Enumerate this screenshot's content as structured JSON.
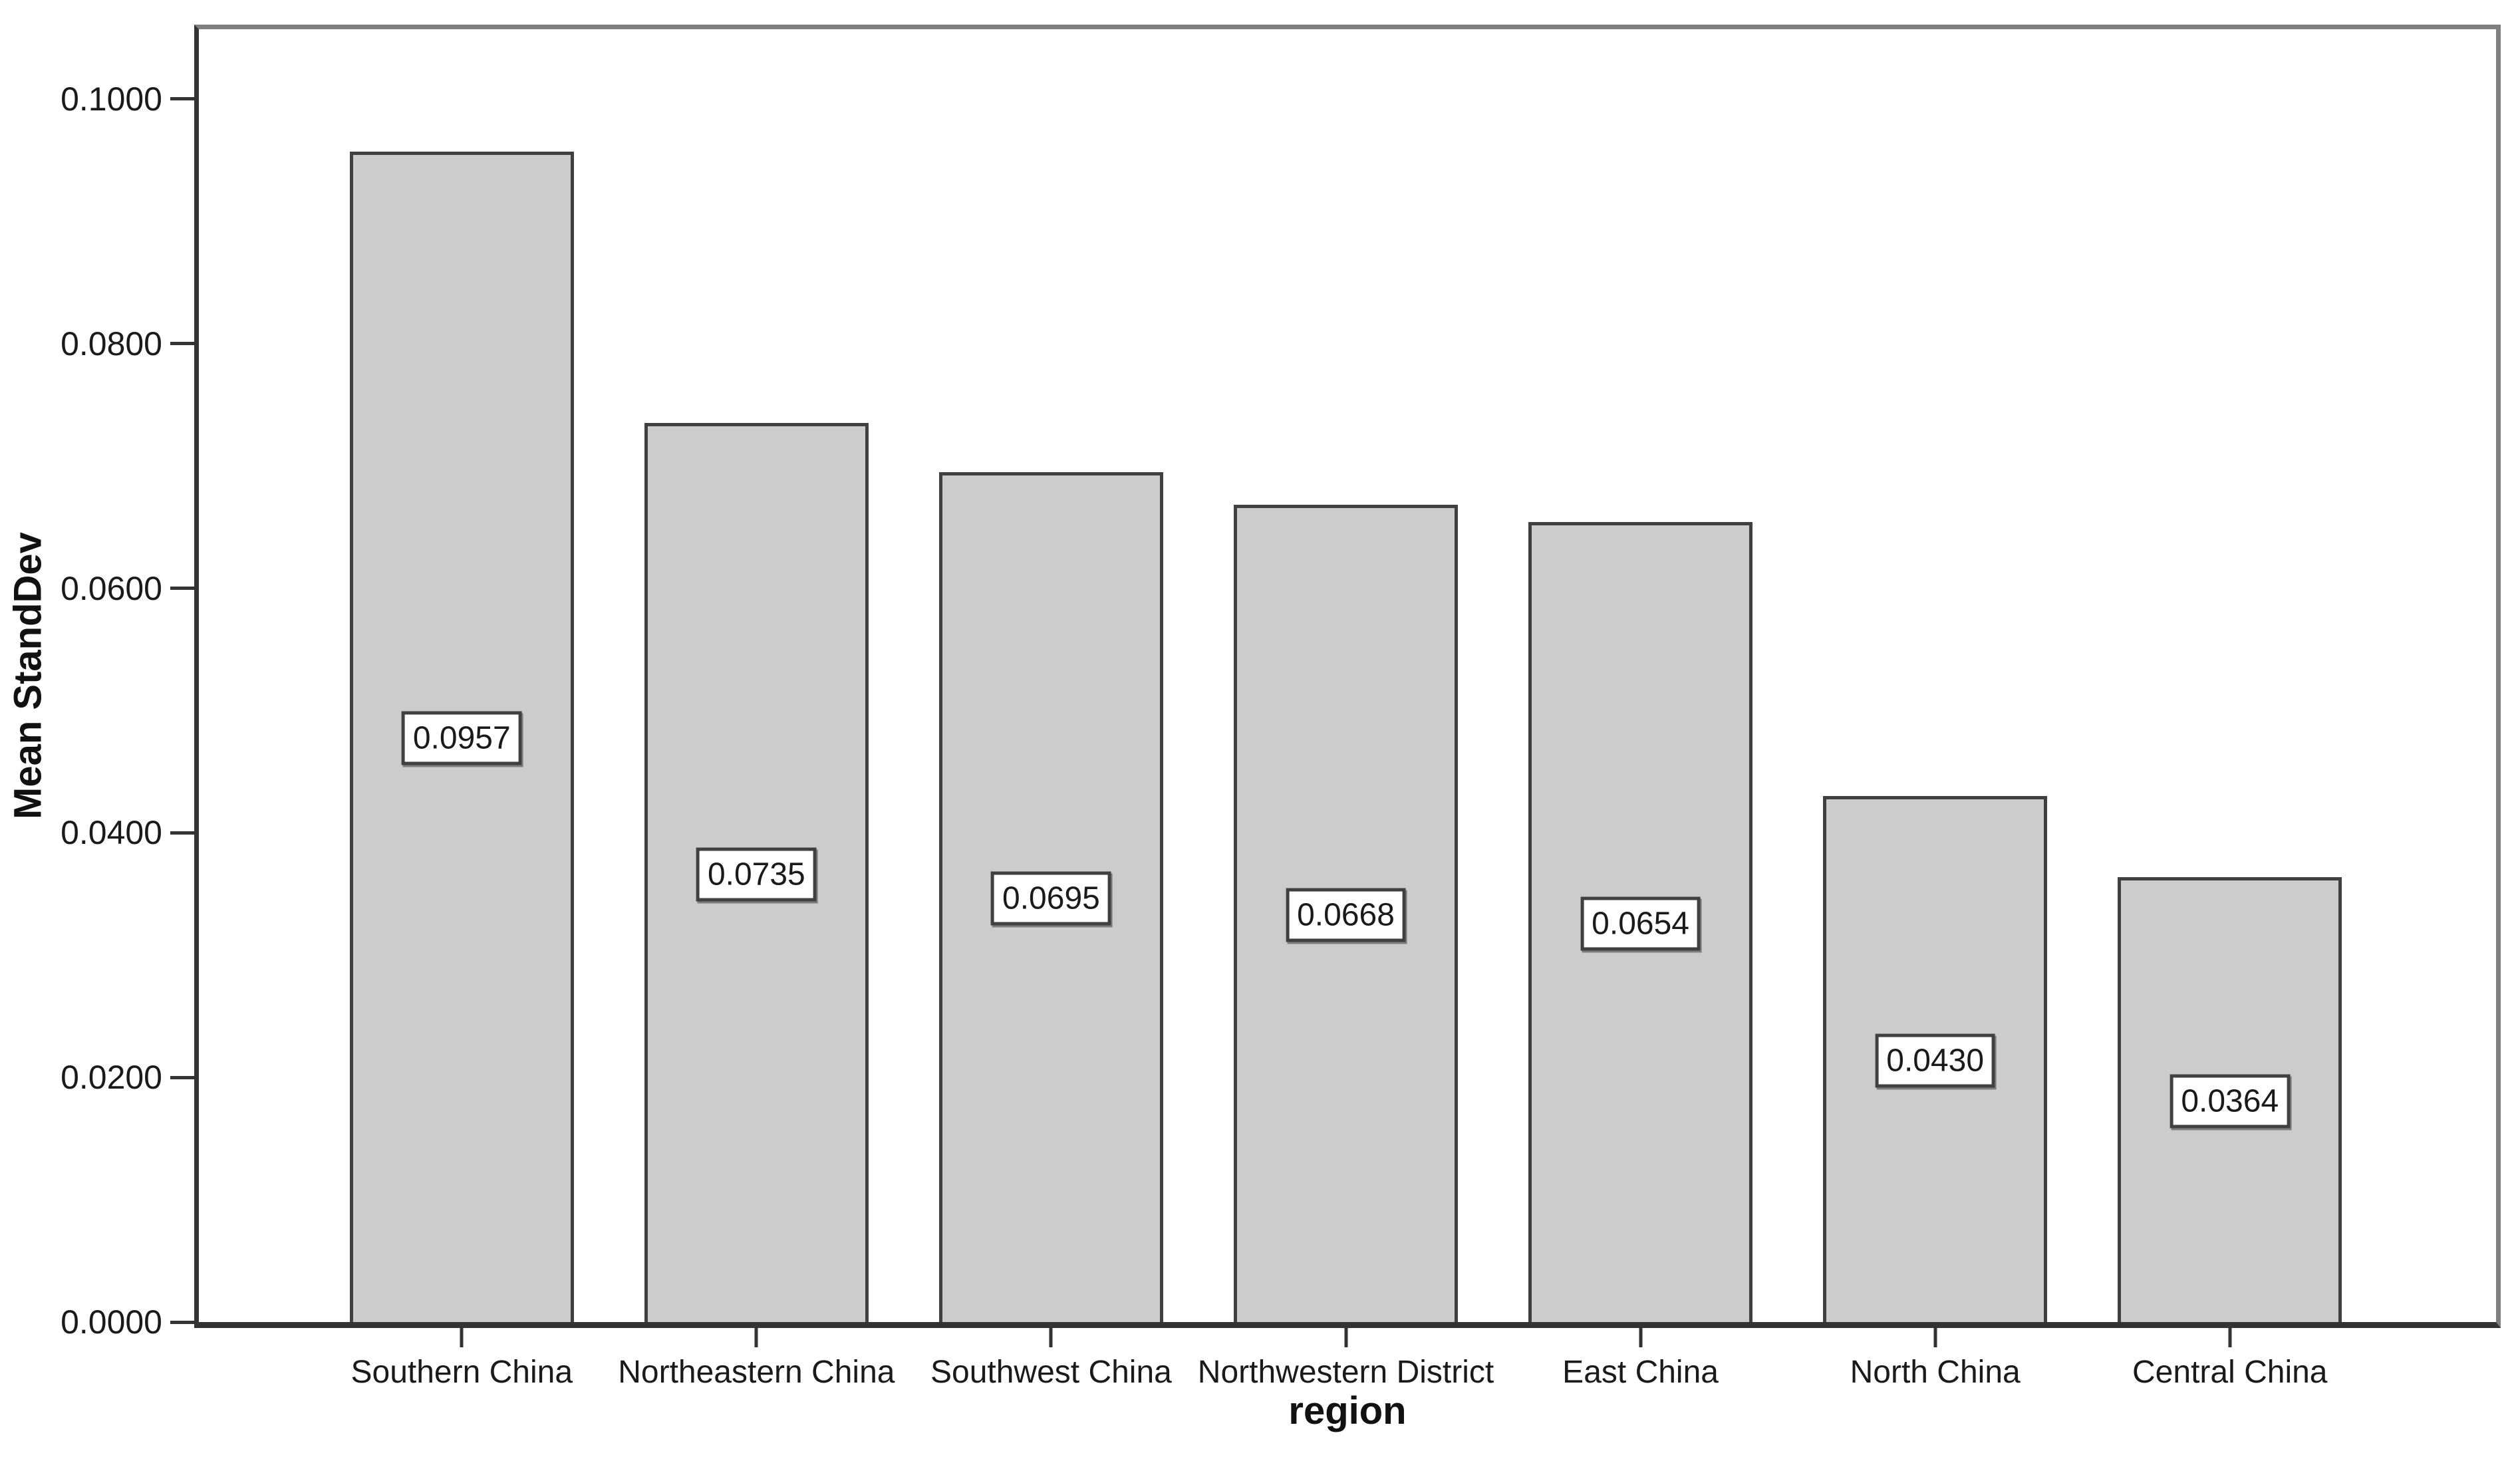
{
  "figure": {
    "background": "#ffffff"
  },
  "chart_data": {
    "type": "bar",
    "title": "",
    "xlabel": "region",
    "ylabel": "Mean StandDev",
    "categories": [
      "Southern China",
      "Northeastern China",
      "Southwest China",
      "Northwestern District",
      "East China",
      "North China",
      "Central China"
    ],
    "values": [
      0.0957,
      0.0735,
      0.0695,
      0.0668,
      0.0654,
      0.043,
      0.0364
    ],
    "value_labels": [
      "0.0957",
      "0.0735",
      "0.0695",
      "0.0668",
      "0.0654",
      "0.0430",
      "0.0364"
    ],
    "y_tick_labels": [
      "0.0000",
      "0.0200",
      "0.0400",
      "0.0600",
      "0.0800",
      "0.1000"
    ],
    "y_tick_values": [
      0.0,
      0.02,
      0.04,
      0.06,
      0.08,
      0.1
    ],
    "ylim": [
      0.0,
      0.1057
    ],
    "grid": false,
    "legend": null,
    "colors": {
      "bar_fill": "#cccccc",
      "bar_border": "#404040",
      "axis_dark": "#333333",
      "axis_gray": "#7f7f7f",
      "label_box_bg": "#ffffff",
      "label_box_border": "#404040"
    }
  }
}
